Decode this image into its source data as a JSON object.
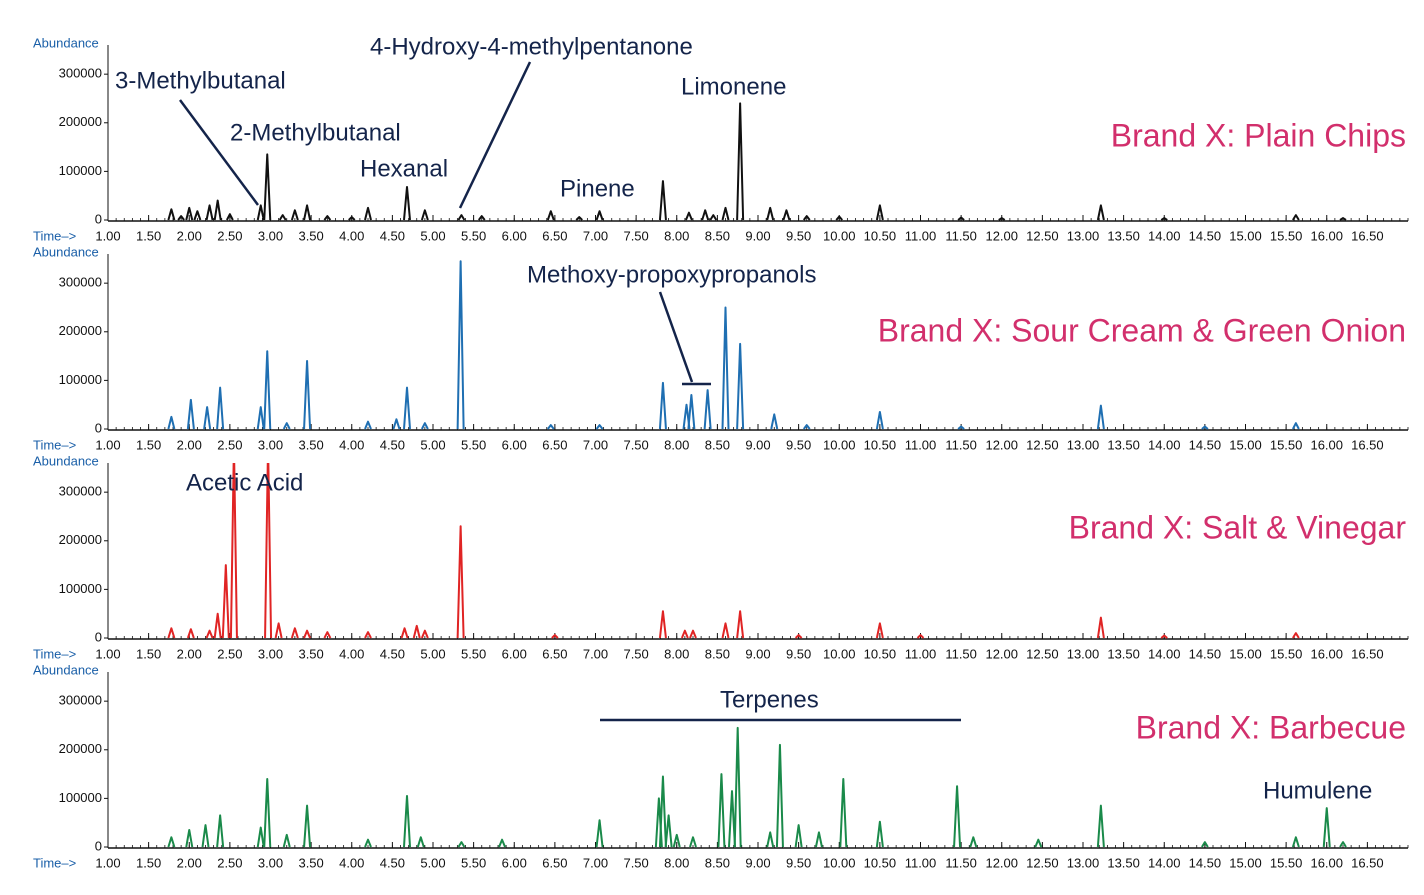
{
  "chart_data": [
    {
      "type": "line",
      "title": "Brand X: Plain Chips",
      "x_label": "Time–>",
      "y_label": "Abundance",
      "color": "#111111",
      "annotations": [
        "3-Methylbutanal",
        "2-Methylbutanal",
        "Hexanal",
        "4-Hydroxy-4-methylpentanone",
        "Pinene",
        "Limonene"
      ],
      "x": [
        1.78,
        1.9,
        2.0,
        2.1,
        2.25,
        2.35,
        2.5,
        2.88,
        2.96,
        3.15,
        3.3,
        3.45,
        3.7,
        4.0,
        4.2,
        4.68,
        4.9,
        5.35,
        5.6,
        6.45,
        6.8,
        7.05,
        7.83,
        8.15,
        8.35,
        8.45,
        8.6,
        8.78,
        9.15,
        9.35,
        9.6,
        10.0,
        10.5,
        11.5,
        12.0,
        13.22,
        14.0,
        15.62,
        16.2
      ],
      "values": [
        22000,
        8000,
        25000,
        18000,
        30000,
        40000,
        12000,
        30000,
        135000,
        10000,
        20000,
        30000,
        8000,
        6000,
        25000,
        68000,
        20000,
        10000,
        8000,
        18000,
        6000,
        18000,
        80000,
        15000,
        20000,
        10000,
        25000,
        240000,
        25000,
        20000,
        8000,
        7000,
        30000,
        5000,
        4000,
        30000,
        4000,
        10000,
        4000
      ],
      "xlim": [
        1.0,
        17.0
      ],
      "ylim": [
        0,
        360000
      ],
      "yticks": [
        0,
        100000,
        200000,
        300000
      ],
      "xticks": [
        {
          "value": 1,
          "label": "1.00"
        },
        {
          "value": 1.5,
          "label": "1.50"
        },
        {
          "value": 2,
          "label": "2.00"
        },
        {
          "value": 2.5,
          "label": "2.50"
        },
        {
          "value": 3,
          "label": "3.00"
        },
        {
          "value": 3.5,
          "label": "3.50"
        },
        {
          "value": 4,
          "label": "4.00"
        },
        {
          "value": 4.5,
          "label": "4.50"
        },
        {
          "value": 5,
          "label": "5.00"
        },
        {
          "value": 5.5,
          "label": "5.50"
        },
        {
          "value": 6,
          "label": "6.00"
        },
        {
          "value": 6.5,
          "label": "6.50"
        },
        {
          "value": 7,
          "label": "7.00"
        },
        {
          "value": 7.5,
          "label": "7.50"
        },
        {
          "value": 8,
          "label": "8.00"
        },
        {
          "value": 8.5,
          "label": "8.50"
        },
        {
          "value": 9,
          "label": "9.00"
        },
        {
          "value": 9.5,
          "label": "9.50"
        },
        {
          "value": 10,
          "label": "10.00"
        },
        {
          "value": 10.5,
          "label": "10.50"
        },
        {
          "value": 11,
          "label": "11.00"
        },
        {
          "value": 11.5,
          "label": "11.50"
        },
        {
          "value": 12,
          "label": "12.00"
        },
        {
          "value": 12.5,
          "label": "12.50"
        },
        {
          "value": 13,
          "label": "13.00"
        },
        {
          "value": 13.5,
          "label": "13.50"
        },
        {
          "value": 14,
          "label": "14.00"
        },
        {
          "value": 14.5,
          "label": "14.50"
        },
        {
          "value": 15,
          "label": "15.00"
        },
        {
          "value": 15.5,
          "label": "15.50"
        },
        {
          "value": 16,
          "label": "16.00"
        },
        {
          "value": 16.5,
          "label": "16.50"
        }
      ]
    },
    {
      "type": "line",
      "title": "Brand X: Sour Cream & Green Onion",
      "x_label": "Time–>",
      "y_label": "Abundance",
      "color": "#1f6fb2",
      "annotations": [
        "Methoxy-propoxypropanols"
      ],
      "x": [
        1.78,
        2.02,
        2.22,
        2.38,
        2.88,
        2.96,
        3.2,
        3.45,
        4.2,
        4.55,
        4.68,
        4.9,
        5.34,
        6.45,
        7.05,
        7.83,
        8.12,
        8.18,
        8.38,
        8.6,
        8.78,
        9.2,
        9.6,
        10.5,
        11.5,
        13.22,
        14.5,
        15.62
      ],
      "values": [
        25000,
        60000,
        45000,
        85000,
        45000,
        160000,
        12000,
        140000,
        15000,
        20000,
        85000,
        12000,
        345000,
        8000,
        8000,
        95000,
        50000,
        70000,
        80000,
        250000,
        175000,
        30000,
        8000,
        35000,
        5000,
        48000,
        5000,
        12000
      ],
      "xlim": [
        1.0,
        17.0
      ],
      "ylim": [
        0,
        360000
      ],
      "yticks": [
        0,
        100000,
        200000,
        300000
      ],
      "xticks": [
        {
          "value": 1,
          "label": "1.00"
        },
        {
          "value": 1.5,
          "label": "1.50"
        },
        {
          "value": 2,
          "label": "2.00"
        },
        {
          "value": 2.5,
          "label": "2.50"
        },
        {
          "value": 3,
          "label": "3.00"
        },
        {
          "value": 3.5,
          "label": "3.50"
        },
        {
          "value": 4,
          "label": "4.00"
        },
        {
          "value": 4.5,
          "label": "4.50"
        },
        {
          "value": 5,
          "label": "5.00"
        },
        {
          "value": 5.5,
          "label": "5.50"
        },
        {
          "value": 6,
          "label": "6.00"
        },
        {
          "value": 6.5,
          "label": "6.50"
        },
        {
          "value": 7,
          "label": "7.00"
        },
        {
          "value": 7.5,
          "label": "7.50"
        },
        {
          "value": 8,
          "label": "8.00"
        },
        {
          "value": 8.5,
          "label": "8.50"
        },
        {
          "value": 9,
          "label": "9.00"
        },
        {
          "value": 9.5,
          "label": "9.50"
        },
        {
          "value": 10,
          "label": "10.00"
        },
        {
          "value": 10.5,
          "label": "10.50"
        },
        {
          "value": 11,
          "label": "11.00"
        },
        {
          "value": 11.5,
          "label": "11.50"
        },
        {
          "value": 12,
          "label": "12.00"
        },
        {
          "value": 12.5,
          "label": "12.50"
        },
        {
          "value": 13,
          "label": "13.00"
        },
        {
          "value": 13.5,
          "label": "13.50"
        },
        {
          "value": 14,
          "label": "14.00"
        },
        {
          "value": 14.5,
          "label": "14.50"
        },
        {
          "value": 15,
          "label": "15.00"
        },
        {
          "value": 15.5,
          "label": "15.50"
        },
        {
          "value": 16,
          "label": "16.00"
        },
        {
          "value": 16.5,
          "label": "16.50"
        }
      ]
    },
    {
      "type": "line",
      "title": "Brand X: Salt & Vinegar",
      "x_label": "Time–>",
      "y_label": "Abundance",
      "color": "#e02424",
      "annotations": [
        "Acetic Acid"
      ],
      "x": [
        1.78,
        2.02,
        2.25,
        2.35,
        2.45,
        2.55,
        2.97,
        3.1,
        3.3,
        3.45,
        3.7,
        4.2,
        4.65,
        4.8,
        4.9,
        5.34,
        6.5,
        7.83,
        8.1,
        8.2,
        8.6,
        8.78,
        9.5,
        10.5,
        11.0,
        13.22,
        14.0,
        15.62
      ],
      "values": [
        20000,
        18000,
        15000,
        50000,
        150000,
        400000,
        400000,
        30000,
        20000,
        15000,
        12000,
        12000,
        20000,
        25000,
        15000,
        230000,
        6000,
        55000,
        15000,
        15000,
        30000,
        55000,
        6000,
        30000,
        6000,
        42000,
        5000,
        10000
      ],
      "xlim": [
        1.0,
        17.0
      ],
      "ylim": [
        0,
        360000
      ],
      "yticks": [
        0,
        100000,
        200000,
        300000
      ],
      "xticks": [
        {
          "value": 1,
          "label": "1.00"
        },
        {
          "value": 1.5,
          "label": "1.50"
        },
        {
          "value": 2,
          "label": "2.00"
        },
        {
          "value": 2.5,
          "label": "2.50"
        },
        {
          "value": 3,
          "label": "3.00"
        },
        {
          "value": 3.5,
          "label": "3.50"
        },
        {
          "value": 4,
          "label": "4.00"
        },
        {
          "value": 4.5,
          "label": "4.50"
        },
        {
          "value": 5,
          "label": "5.00"
        },
        {
          "value": 5.5,
          "label": "5.50"
        },
        {
          "value": 6,
          "label": "6.00"
        },
        {
          "value": 6.5,
          "label": "6.50"
        },
        {
          "value": 7,
          "label": "7.00"
        },
        {
          "value": 7.5,
          "label": "7.50"
        },
        {
          "value": 8,
          "label": "8.00"
        },
        {
          "value": 8.5,
          "label": "8.50"
        },
        {
          "value": 9,
          "label": "9.00"
        },
        {
          "value": 9.5,
          "label": "9.50"
        },
        {
          "value": 10,
          "label": "10.00"
        },
        {
          "value": 10.5,
          "label": "10.50"
        },
        {
          "value": 11,
          "label": "11.00"
        },
        {
          "value": 11.5,
          "label": "11.50"
        },
        {
          "value": 12,
          "label": "12.00"
        },
        {
          "value": 12.5,
          "label": "12.50"
        },
        {
          "value": 13,
          "label": "13.00"
        },
        {
          "value": 13.5,
          "label": "13.50"
        },
        {
          "value": 14,
          "label": "14.00"
        },
        {
          "value": 14.5,
          "label": "14.50"
        },
        {
          "value": 15,
          "label": "15.00"
        },
        {
          "value": 15.5,
          "label": "15.50"
        },
        {
          "value": 16,
          "label": "16.00"
        },
        {
          "value": 16.5,
          "label": "16.50"
        }
      ]
    },
    {
      "type": "line",
      "title": "Brand X: Barbecue",
      "x_label": "Time–>",
      "y_label": "Abundance",
      "color": "#1a8a4a",
      "annotations": [
        "Terpenes",
        "Humulene"
      ],
      "x": [
        1.78,
        2.0,
        2.2,
        2.38,
        2.88,
        2.96,
        3.2,
        3.45,
        4.2,
        4.68,
        4.85,
        5.35,
        5.85,
        7.05,
        7.78,
        7.83,
        7.9,
        8.0,
        8.2,
        8.55,
        8.68,
        8.75,
        9.15,
        9.27,
        9.5,
        9.75,
        10.05,
        10.5,
        11.45,
        11.65,
        12.45,
        13.22,
        14.5,
        15.62,
        16.0,
        16.2
      ],
      "values": [
        20000,
        35000,
        45000,
        65000,
        40000,
        140000,
        25000,
        85000,
        15000,
        105000,
        20000,
        10000,
        15000,
        55000,
        100000,
        145000,
        65000,
        25000,
        20000,
        150000,
        115000,
        245000,
        30000,
        210000,
        45000,
        30000,
        140000,
        52000,
        125000,
        20000,
        15000,
        85000,
        10000,
        20000,
        80000,
        10000
      ],
      "xlim": [
        1.0,
        17.0
      ],
      "ylim": [
        0,
        360000
      ],
      "yticks": [
        0,
        100000,
        200000,
        300000
      ],
      "xticks": [
        {
          "value": 1,
          "label": "1.00"
        },
        {
          "value": 1.5,
          "label": "1.50"
        },
        {
          "value": 2,
          "label": "2.00"
        },
        {
          "value": 2.5,
          "label": "2.50"
        },
        {
          "value": 3,
          "label": "3.00"
        },
        {
          "value": 3.5,
          "label": "3.50"
        },
        {
          "value": 4,
          "label": "4.00"
        },
        {
          "value": 4.5,
          "label": "4.50"
        },
        {
          "value": 5,
          "label": "5.00"
        },
        {
          "value": 5.5,
          "label": "5.50"
        },
        {
          "value": 6,
          "label": "6.00"
        },
        {
          "value": 6.5,
          "label": "6.50"
        },
        {
          "value": 7,
          "label": "7.00"
        },
        {
          "value": 7.5,
          "label": "7.50"
        },
        {
          "value": 8,
          "label": "8.00"
        },
        {
          "value": 8.5,
          "label": "8.50"
        },
        {
          "value": 9,
          "label": "9.00"
        },
        {
          "value": 9.5,
          "label": "9.50"
        },
        {
          "value": 10,
          "label": "10.00"
        },
        {
          "value": 10.5,
          "label": "10.50"
        },
        {
          "value": 11,
          "label": "11.00"
        },
        {
          "value": 11.5,
          "label": "11.50"
        },
        {
          "value": 12,
          "label": "12.00"
        },
        {
          "value": 12.5,
          "label": "12.50"
        },
        {
          "value": 13,
          "label": "13.00"
        },
        {
          "value": 13.5,
          "label": "13.50"
        },
        {
          "value": 14,
          "label": "14.00"
        },
        {
          "value": 14.5,
          "label": "14.50"
        },
        {
          "value": 15,
          "label": "15.00"
        },
        {
          "value": 15.5,
          "label": "15.50"
        },
        {
          "value": 16,
          "label": "16.00"
        },
        {
          "value": 16.5,
          "label": "16.50"
        }
      ]
    }
  ]
}
